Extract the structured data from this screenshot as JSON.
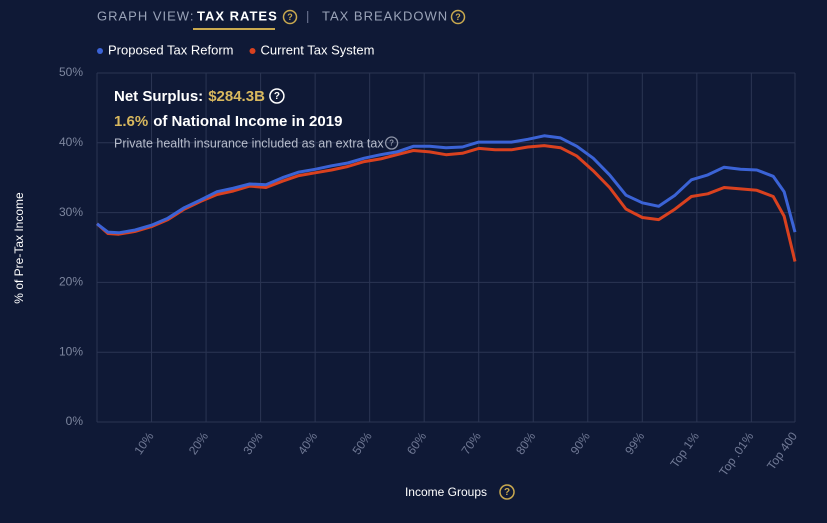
{
  "header": {
    "label": "GRAPH VIEW:",
    "tabs": [
      "TAX RATES",
      "TAX BREAKDOWN"
    ]
  },
  "chart_data": {
    "type": "line",
    "xlabel": "Income Groups",
    "ylabel": "% of Pre-Tax Income",
    "annotations": {
      "surplus_label": "Net Surplus:",
      "surplus_value": "$284.3B",
      "share_value": "1.6%",
      "share_label": "of National Income in 2019",
      "note": "Private health insurance included as an extra tax"
    },
    "x": [
      0,
      2,
      4,
      7,
      10,
      13,
      16,
      19,
      22,
      25,
      28,
      31,
      34,
      37,
      40,
      43,
      46,
      49,
      52,
      55,
      58,
      61,
      64,
      67,
      70,
      73,
      76,
      79,
      82,
      85,
      88,
      91,
      94,
      97,
      100,
      103,
      106,
      109,
      112,
      115,
      118,
      121,
      124,
      126,
      128
    ],
    "series": [
      {
        "name": "Proposed Tax Reform",
        "color": "#3b63d6",
        "values": [
          28.4,
          27.2,
          27.1,
          27.5,
          28.2,
          29.2,
          30.7,
          31.8,
          33.0,
          33.5,
          34.1,
          34.0,
          35.0,
          35.8,
          36.2,
          36.7,
          37.1,
          37.8,
          38.3,
          38.7,
          39.5,
          39.5,
          39.3,
          39.4,
          40.1,
          40.1,
          40.1,
          40.5,
          41.0,
          40.7,
          39.5,
          37.8,
          35.4,
          32.5,
          31.4,
          30.9,
          32.5,
          34.7,
          35.4,
          36.5,
          36.2,
          36.1,
          35.2,
          33.0,
          27.2
        ]
      },
      {
        "name": "Current Tax System",
        "color": "#d9411f",
        "values": [
          28.4,
          27.0,
          26.9,
          27.3,
          28.0,
          29.0,
          30.5,
          31.6,
          32.6,
          33.1,
          33.8,
          33.6,
          34.5,
          35.3,
          35.7,
          36.1,
          36.6,
          37.3,
          37.7,
          38.3,
          38.9,
          38.7,
          38.3,
          38.5,
          39.2,
          39.0,
          39.0,
          39.4,
          39.6,
          39.3,
          38.1,
          36.0,
          33.6,
          30.5,
          29.3,
          29.0,
          30.5,
          32.3,
          32.7,
          33.6,
          33.4,
          33.2,
          32.3,
          29.5,
          23.0
        ]
      }
    ],
    "xlim": [
      0,
      128
    ],
    "xticks": [
      {
        "value": 10,
        "label": "10%"
      },
      {
        "value": 20,
        "label": "20%"
      },
      {
        "value": 30,
        "label": "30%"
      },
      {
        "value": 40,
        "label": "40%"
      },
      {
        "value": 50,
        "label": "50%"
      },
      {
        "value": 60,
        "label": "60%"
      },
      {
        "value": 70,
        "label": "70%"
      },
      {
        "value": 80,
        "label": "80%"
      },
      {
        "value": 90,
        "label": "90%"
      },
      {
        "value": 100,
        "label": "99%"
      },
      {
        "value": 110,
        "label": "Top 1%"
      },
      {
        "value": 120,
        "label": "Top .01%"
      },
      {
        "value": 128,
        "label": "Top 400"
      }
    ],
    "ylim": [
      0,
      50
    ],
    "yticks": [
      {
        "value": 0,
        "label": "0%"
      },
      {
        "value": 10,
        "label": "10%"
      },
      {
        "value": 20,
        "label": "20%"
      },
      {
        "value": 30,
        "label": "30%"
      },
      {
        "value": 40,
        "label": "40%"
      },
      {
        "value": 50,
        "label": "50%"
      }
    ],
    "grid": true
  }
}
